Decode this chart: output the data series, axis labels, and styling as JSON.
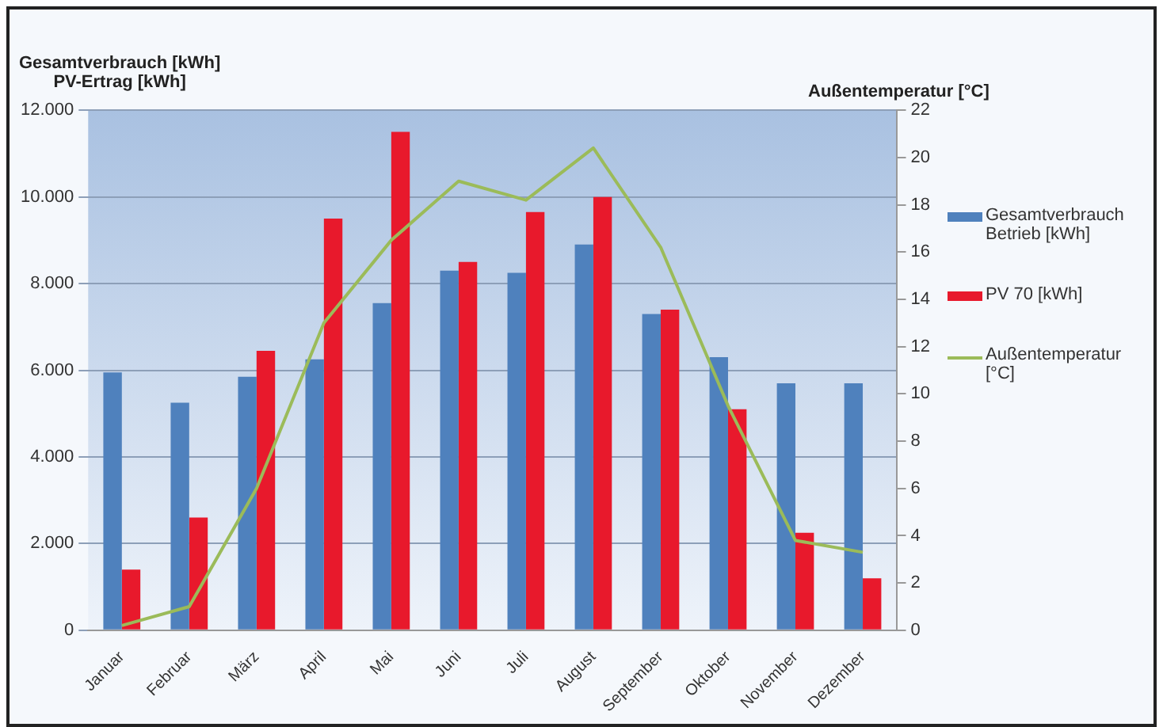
{
  "chart_data": {
    "type": "bar",
    "ylabel": "Gesamtverbrauch [kWh]\nPV-Ertrag [kWh]",
    "y2label": "Außentemperatur [°C]",
    "categories": [
      "Januar",
      "Februar",
      "März",
      "April",
      "Mai",
      "Juni",
      "Juli",
      "August",
      "September",
      "Oktober",
      "November",
      "Dezember"
    ],
    "series": [
      {
        "name": "Gesamtverbrauch Betrieb [kWh]",
        "color": "#4f81bd",
        "values": [
          5950,
          5250,
          5850,
          6250,
          7550,
          8300,
          8250,
          8900,
          7300,
          6300,
          5700,
          5700
        ]
      },
      {
        "name": "PV 70  [kWh]",
        "color": "#e8192c",
        "values": [
          1400,
          2600,
          6450,
          9500,
          11500,
          8500,
          9650,
          10000,
          7400,
          5100,
          2250,
          1200
        ]
      },
      {
        "name": "Außentemperatur [°C]",
        "type": "line",
        "axis": "y2",
        "color": "#9bbb59",
        "values": [
          0.2,
          1,
          6,
          13,
          16.5,
          19,
          18.2,
          20.4,
          16.2,
          9.5,
          3.8,
          3.3
        ]
      }
    ],
    "ylim": [
      0,
      12000
    ],
    "yticks": [
      0,
      {
        "value": 2000,
        "label": "2.000"
      },
      {
        "value": 4000,
        "label": "4.000"
      },
      {
        "value": 6000,
        "label": "6.000"
      },
      {
        "value": 8000,
        "label": "8.000"
      },
      {
        "value": 10000,
        "label": "10.000"
      },
      {
        "value": 12000,
        "label": "12.000"
      }
    ],
    "y2lim": [
      0,
      22
    ],
    "y2ticks": [
      0,
      2,
      4,
      6,
      8,
      10,
      12,
      14,
      16,
      18,
      20,
      22
    ],
    "grid": "y",
    "legend": "right",
    "marker": "none"
  }
}
